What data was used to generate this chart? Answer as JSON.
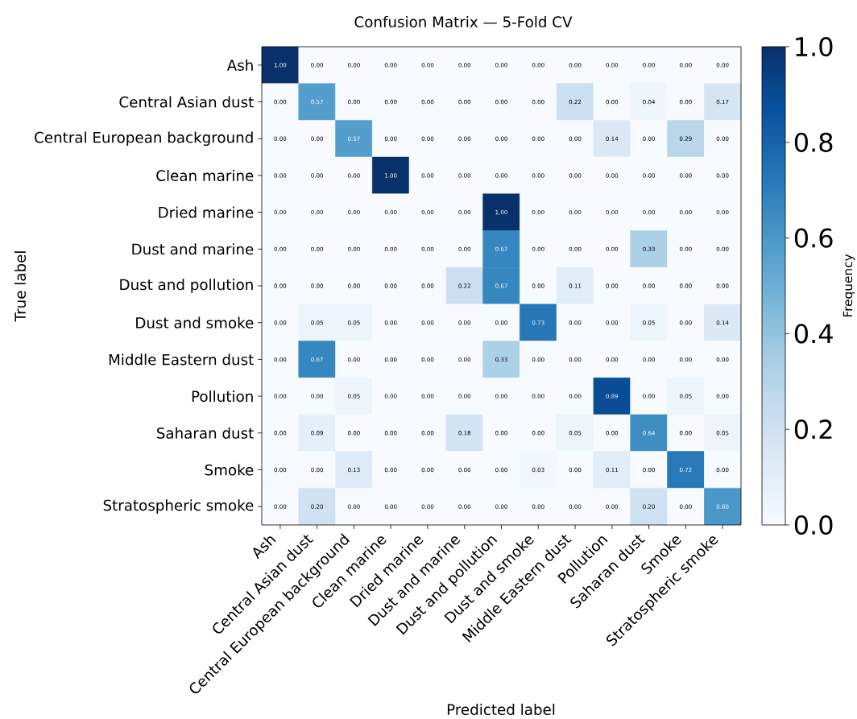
{
  "chart_data": {
    "type": "heatmap",
    "title": "Confusion Matrix — 5-Fold CV",
    "xlabel": "Predicted label",
    "ylabel": "True label",
    "clabel": "Frequency",
    "categories": [
      "Ash",
      "Central Asian dust",
      "Central European background",
      "Clean marine",
      "Dried marine",
      "Dust and marine",
      "Dust and pollution",
      "Dust and smoke",
      "Middle Eastern dust",
      "Pollution",
      "Saharan dust",
      "Smoke",
      "Stratospheric smoke"
    ],
    "y_categories": [
      "Ash",
      "Central Asian dust",
      "Central European background",
      "Clean marine",
      "Dried marine",
      "Dust and marine",
      "Dust and pollution",
      "Dust and smoke",
      "Middle Eastern dust",
      "Pollution",
      "Saharan dust",
      "Smoke",
      "Stratospheric smoke"
    ],
    "cells": [
      [
        1.0,
        0,
        0,
        0,
        0,
        0,
        0,
        0,
        0,
        0,
        0,
        0,
        0
      ],
      [
        0,
        0.57,
        0,
        0,
        0,
        0,
        0,
        0,
        0.22,
        0,
        0.04,
        0,
        0.17
      ],
      [
        0,
        0,
        0.57,
        0,
        0,
        0,
        0,
        0,
        0,
        0.14,
        0,
        0.29,
        0
      ],
      [
        0,
        0,
        0,
        1.0,
        0,
        0,
        0,
        0,
        0,
        0,
        0,
        0,
        0
      ],
      [
        0,
        0,
        0,
        0,
        0,
        0,
        1.0,
        0,
        0,
        0,
        0,
        0,
        0
      ],
      [
        0,
        0,
        0,
        0,
        0,
        0,
        0.67,
        0,
        0,
        0,
        0.33,
        0,
        0
      ],
      [
        0,
        0,
        0,
        0,
        0,
        0.22,
        0.67,
        0,
        0.11,
        0,
        0,
        0,
        0
      ],
      [
        0,
        0.05,
        0.05,
        0,
        0,
        0,
        0,
        0.73,
        0,
        0,
        0.05,
        0,
        0.14
      ],
      [
        0,
        0.67,
        0,
        0,
        0,
        0,
        0.33,
        0,
        0,
        0,
        0,
        0,
        0
      ],
      [
        0,
        0,
        0.05,
        0,
        0,
        0,
        0,
        0,
        0,
        0.89,
        0,
        0.05,
        0
      ],
      [
        0,
        0.09,
        0,
        0,
        0,
        0.18,
        0,
        0,
        0.05,
        0,
        0.64,
        0,
        0.05
      ],
      [
        0,
        0,
        0.13,
        0,
        0,
        0,
        0,
        0.03,
        0,
        0.11,
        0,
        0.72,
        0
      ],
      [
        0,
        0.2,
        0,
        0,
        0,
        0,
        0,
        0,
        0,
        0,
        0.2,
        0,
        0.6
      ]
    ],
    "cell_labels": [
      [
        "1.00",
        "0.00",
        "0.00",
        "0.00",
        "0.00",
        "0.00",
        "0.00",
        "0.00",
        "0.00",
        "0.00",
        "0.00",
        "0.00",
        "0.00"
      ],
      [
        "0.00",
        "0.57",
        "0.00",
        "0.00",
        "0.00",
        "0.00",
        "0.00",
        "0.00",
        "0.22",
        "0.00",
        "0.04",
        "0.00",
        "0.17"
      ],
      [
        "0.00",
        "0.00",
        "0.57",
        "0.00",
        "0.00",
        "0.00",
        "0.00",
        "0.00",
        "0.00",
        "0.14",
        "0.00",
        "0.29",
        "0.00"
      ],
      [
        "0.00",
        "0.00",
        "0.00",
        "1.00",
        "0.00",
        "0.00",
        "0.00",
        "0.00",
        "0.00",
        "0.00",
        "0.00",
        "0.00",
        "0.00"
      ],
      [
        "0.00",
        "0.00",
        "0.00",
        "0.00",
        "0.00",
        "0.00",
        "1.00",
        "0.00",
        "0.00",
        "0.00",
        "0.00",
        "0.00",
        "0.00"
      ],
      [
        "0.00",
        "0.00",
        "0.00",
        "0.00",
        "0.00",
        "0.00",
        "0.67",
        "0.00",
        "0.00",
        "0.00",
        "0.33",
        "0.00",
        "0.00"
      ],
      [
        "0.00",
        "0.00",
        "0.00",
        "0.00",
        "0.00",
        "0.22",
        "0.67",
        "0.00",
        "0.11",
        "0.00",
        "0.00",
        "0.00",
        "0.00"
      ],
      [
        "0.00",
        "0.05",
        "0.05",
        "0.00",
        "0.00",
        "0.00",
        "0.00",
        "0.73",
        "0.00",
        "0.00",
        "0.05",
        "0.00",
        "0.14"
      ],
      [
        "0.00",
        "0.67",
        "0.00",
        "0.00",
        "0.00",
        "0.00",
        "0.33",
        "0.00",
        "0.00",
        "0.00",
        "0.00",
        "0.00",
        "0.00"
      ],
      [
        "0.00",
        "0.00",
        "0.05",
        "0.00",
        "0.00",
        "0.00",
        "0.00",
        "0.00",
        "0.00",
        "0.89",
        "0.00",
        "0.05",
        "0.00"
      ],
      [
        "0.00",
        "0.09",
        "0.00",
        "0.00",
        "0.00",
        "0.18",
        "0.00",
        "0.00",
        "0.05",
        "0.00",
        "0.64",
        "0.00",
        "0.05"
      ],
      [
        "0.00",
        "0.00",
        "0.13",
        "0.00",
        "0.00",
        "0.00",
        "0.00",
        "0.03",
        "0.00",
        "0.11",
        "0.00",
        "0.72",
        "0.00"
      ],
      [
        "0.00",
        "0.20",
        "0.00",
        "0.00",
        "0.00",
        "0.00",
        "0.00",
        "0.00",
        "0.00",
        "0.00",
        "0.20",
        "0.00",
        "0.60"
      ]
    ],
    "clim": [
      0,
      1
    ],
    "cticks": [
      {
        "value": 0,
        "label": "0.0"
      },
      0.2,
      0.4,
      0.6,
      0.8,
      {
        "value": 1,
        "label": "1.0"
      }
    ]
  }
}
